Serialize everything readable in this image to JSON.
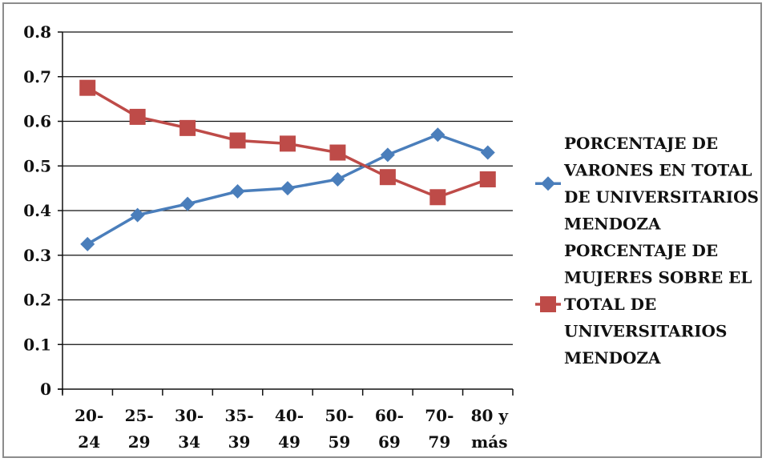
{
  "chart_data": {
    "type": "line",
    "title": "",
    "xlabel": "",
    "ylabel": "",
    "categories": [
      [
        "20-",
        "24"
      ],
      [
        "25-",
        "29"
      ],
      [
        "30-",
        "34"
      ],
      [
        "35-",
        "39"
      ],
      [
        "40-",
        "49"
      ],
      [
        "50-",
        "59"
      ],
      [
        "60-",
        "69"
      ],
      [
        "70-",
        "79"
      ],
      [
        "80 y",
        "más"
      ]
    ],
    "ylim": [
      0,
      0.8
    ],
    "yticks": [
      "0",
      "0.1",
      "0.2",
      "0.3",
      "0.4",
      "0.5",
      "0.6",
      "0.7",
      "0.8"
    ],
    "grid": true,
    "legend_position": "right",
    "series": [
      {
        "name_lines": [
          "PORCENTAJE DE",
          "VARONES EN TOTAL",
          "DE UNIVERSITARIOS",
          "MENDOZA"
        ],
        "color": "#4a7ebb",
        "marker": "diamond",
        "values": [
          0.325,
          0.39,
          0.415,
          0.443,
          0.45,
          0.47,
          0.525,
          0.57,
          0.53
        ]
      },
      {
        "name_lines": [
          "PORCENTAJE DE",
          "MUJERES SOBRE EL",
          "TOTAL DE",
          "UNIVERSITARIOS",
          "MENDOZA"
        ],
        "color": "#be4b48",
        "marker": "square",
        "values": [
          0.675,
          0.61,
          0.585,
          0.557,
          0.55,
          0.53,
          0.475,
          0.43,
          0.47
        ]
      }
    ]
  }
}
